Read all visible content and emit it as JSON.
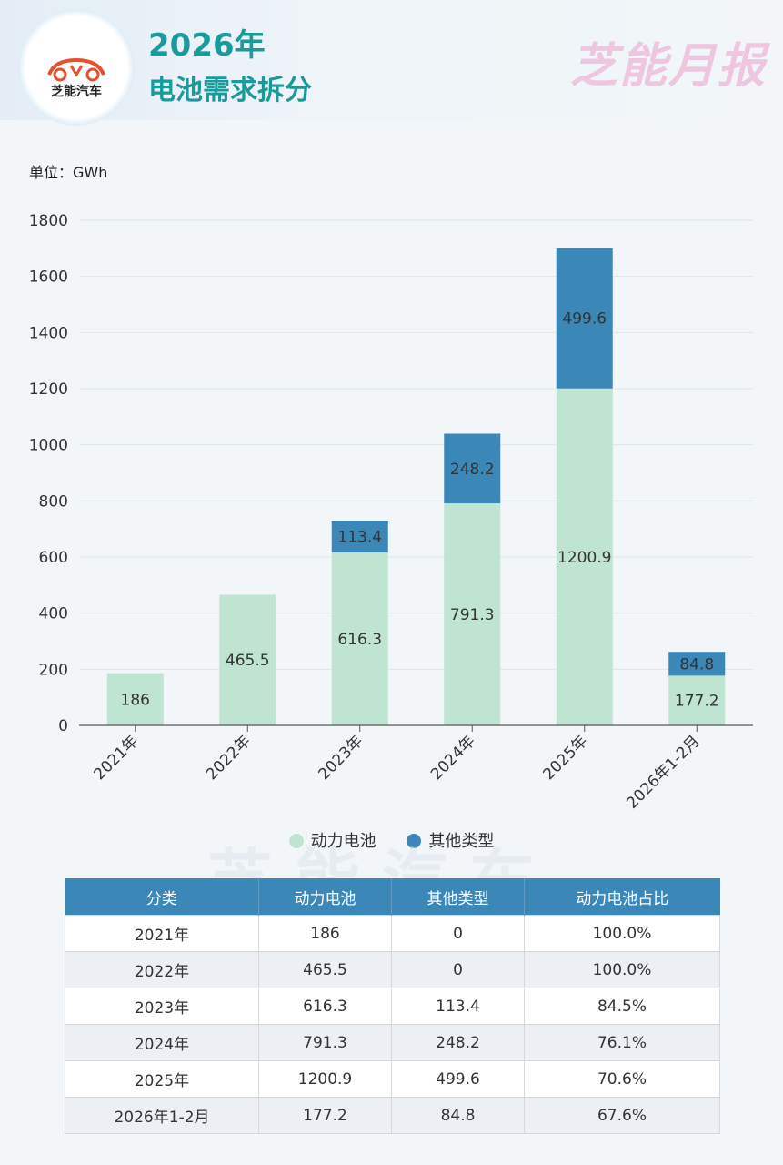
{
  "header": {
    "logo_text": "芝能汽车",
    "title_line1": "2026年",
    "title_line2": "电池需求拆分",
    "brand": "芝能月报"
  },
  "colors": {
    "power": "#bfe4d1",
    "other": "#3b87b8",
    "title": "#1b9a9c",
    "brand": "#eec6e0"
  },
  "watermark": "芝能汽车",
  "chart_data": {
    "type": "bar",
    "stacked": true,
    "unit_label": "单位：GWh",
    "categories": [
      "2021年",
      "2022年",
      "2023年",
      "2024年",
      "2025年",
      "2026年1-2月"
    ],
    "series": [
      {
        "name": "动力电池",
        "values": [
          186,
          465.5,
          616.3,
          791.3,
          1200.9,
          177.2
        ],
        "labels": [
          "186",
          "465.5",
          "616.3",
          "791.3",
          "1200.9",
          "177.2"
        ]
      },
      {
        "name": "其他类型",
        "values": [
          0,
          0,
          113.4,
          248.2,
          499.6,
          84.8
        ],
        "labels": [
          "",
          "",
          "113.4",
          "248.2",
          "499.6",
          "84.8"
        ]
      }
    ],
    "ylim": [
      0,
      1800
    ],
    "yticks": [
      0,
      200,
      400,
      600,
      800,
      1000,
      1200,
      1400,
      1600,
      1800
    ],
    "ytick_labels": [
      "0",
      "200",
      "400",
      "600",
      "800",
      "1000",
      "1200",
      "1400",
      "1600",
      "1800"
    ],
    "legend": [
      "动力电池",
      "其他类型"
    ],
    "grid": true
  },
  "table": {
    "headers": [
      "分类",
      "动力电池",
      "其他类型",
      "动力电池占比"
    ],
    "rows": [
      [
        "2021年",
        "186",
        "0",
        "100.0%"
      ],
      [
        "2022年",
        "465.5",
        "0",
        "100.0%"
      ],
      [
        "2023年",
        "616.3",
        "113.4",
        "84.5%"
      ],
      [
        "2024年",
        "791.3",
        "248.2",
        "76.1%"
      ],
      [
        "2025年",
        "1200.9",
        "499.6",
        "70.6%"
      ],
      [
        "2026年1-2月",
        "177.2",
        "84.8",
        "67.6%"
      ]
    ]
  }
}
